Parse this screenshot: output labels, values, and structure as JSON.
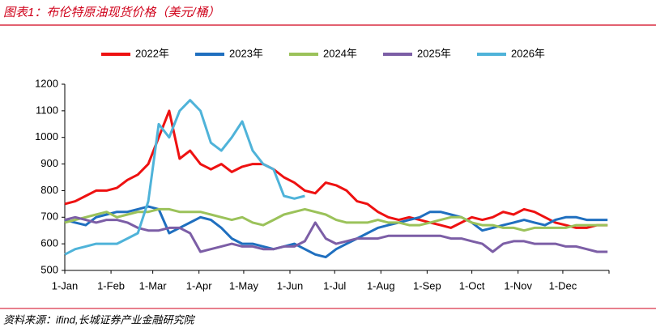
{
  "chart_data": {
    "type": "line",
    "title": "图表1：布伦特原油现货价格（美元/桶）",
    "source": "资料来源：ifind,长城证券产业金融研究院",
    "xlim": [
      0,
      365
    ],
    "xticks": [
      {
        "value": 0,
        "label": "1-Jan"
      },
      {
        "value": 31,
        "label": "1-Feb"
      },
      {
        "value": 59,
        "label": "1-Mar"
      },
      {
        "value": 90,
        "label": "1-Apr"
      },
      {
        "value": 120,
        "label": "1-May"
      },
      {
        "value": 151,
        "label": "1-Jun"
      },
      {
        "value": 181,
        "label": "1-Jul"
      },
      {
        "value": 212,
        "label": "1-Aug"
      },
      {
        "value": 243,
        "label": "1-Sep"
      },
      {
        "value": 273,
        "label": "1-Oct"
      },
      {
        "value": 304,
        "label": "1-Nov"
      },
      {
        "value": 334,
        "label": "1-Dec"
      }
    ],
    "ylim": [
      500,
      1200
    ],
    "yticks": [
      500,
      600,
      700,
      800,
      900,
      1000,
      1100,
      1200
    ],
    "grid": false,
    "legend": "top",
    "series": [
      {
        "name": "2022年",
        "color": "#ee1111",
        "x": [
          0,
          7,
          14,
          21,
          28,
          35,
          42,
          49,
          56,
          63,
          70,
          77,
          84,
          91,
          98,
          105,
          112,
          119,
          126,
          133,
          140,
          147,
          154,
          161,
          168,
          175,
          182,
          189,
          196,
          203,
          210,
          217,
          224,
          231,
          238,
          245,
          252,
          259,
          266,
          273,
          280,
          287,
          294,
          301,
          308,
          315,
          322,
          329,
          336,
          343,
          350,
          357,
          364
        ],
        "values": [
          750,
          760,
          780,
          800,
          800,
          810,
          840,
          860,
          900,
          1000,
          1100,
          920,
          950,
          900,
          880,
          900,
          870,
          890,
          900,
          900,
          880,
          850,
          830,
          800,
          790,
          830,
          820,
          800,
          760,
          750,
          720,
          700,
          690,
          700,
          690,
          680,
          670,
          660,
          680,
          700,
          690,
          700,
          720,
          710,
          730,
          720,
          700,
          680,
          670,
          660,
          660,
          670,
          670
        ]
      },
      {
        "name": "2023年",
        "color": "#1f6fbf",
        "x": [
          0,
          7,
          14,
          21,
          28,
          35,
          42,
          49,
          56,
          63,
          70,
          77,
          84,
          91,
          98,
          105,
          112,
          119,
          126,
          133,
          140,
          147,
          154,
          161,
          168,
          175,
          182,
          189,
          196,
          203,
          210,
          217,
          224,
          231,
          238,
          245,
          252,
          259,
          266,
          273,
          280,
          287,
          294,
          301,
          308,
          315,
          322,
          329,
          336,
          343,
          350,
          357,
          364
        ],
        "values": [
          690,
          680,
          670,
          700,
          710,
          720,
          720,
          730,
          740,
          730,
          640,
          660,
          680,
          700,
          690,
          660,
          620,
          600,
          600,
          590,
          580,
          590,
          600,
          580,
          560,
          550,
          580,
          600,
          620,
          640,
          660,
          670,
          680,
          690,
          700,
          720,
          720,
          710,
          700,
          680,
          650,
          660,
          670,
          680,
          690,
          680,
          670,
          690,
          700,
          700,
          690,
          690,
          690
        ]
      },
      {
        "name": "2024年",
        "color": "#9bc25a",
        "x": [
          0,
          7,
          14,
          21,
          28,
          35,
          42,
          49,
          56,
          63,
          70,
          77,
          84,
          91,
          98,
          105,
          112,
          119,
          126,
          133,
          140,
          147,
          154,
          161,
          168,
          175,
          182,
          189,
          196,
          203,
          210,
          217,
          224,
          231,
          238,
          245,
          252,
          259,
          266,
          273,
          280,
          287,
          294,
          301,
          308,
          315,
          322,
          329,
          336,
          343,
          350,
          357,
          364
        ],
        "values": [
          680,
          690,
          700,
          710,
          720,
          700,
          710,
          720,
          720,
          730,
          730,
          720,
          720,
          720,
          710,
          700,
          690,
          700,
          680,
          670,
          690,
          710,
          720,
          730,
          720,
          710,
          690,
          680,
          680,
          680,
          690,
          680,
          680,
          670,
          670,
          680,
          690,
          700,
          700,
          680,
          670,
          670,
          660,
          660,
          650,
          660,
          660,
          660,
          660,
          670,
          670,
          670,
          670
        ]
      },
      {
        "name": "2025年",
        "color": "#7c5ea6",
        "x": [
          0,
          7,
          14,
          21,
          28,
          35,
          42,
          49,
          56,
          63,
          70,
          77,
          84,
          91,
          98,
          105,
          112,
          119,
          126,
          133,
          140,
          147,
          154,
          161,
          168,
          175,
          182,
          189,
          196,
          203,
          210,
          217,
          224,
          231,
          238,
          245,
          252,
          259,
          266,
          273,
          280,
          287,
          294,
          301,
          308,
          315,
          322,
          329,
          336,
          343,
          350,
          357,
          364
        ],
        "values": [
          690,
          700,
          690,
          680,
          690,
          690,
          680,
          660,
          650,
          650,
          660,
          660,
          640,
          570,
          580,
          590,
          600,
          590,
          590,
          580,
          580,
          590,
          590,
          610,
          680,
          620,
          600,
          610,
          620,
          620,
          620,
          630,
          630,
          630,
          630,
          630,
          630,
          620,
          620,
          610,
          600,
          570,
          600,
          610,
          610,
          600,
          600,
          600,
          590,
          590,
          580,
          570,
          570
        ]
      },
      {
        "name": "2026年",
        "color": "#4fb3d9",
        "x": [
          0,
          7,
          14,
          21,
          28,
          35,
          42,
          49,
          56,
          63,
          70,
          77,
          84,
          91,
          98,
          105,
          112,
          119,
          126,
          133,
          140,
          147,
          154,
          161
        ],
        "values": [
          560,
          580,
          590,
          600,
          600,
          600,
          620,
          640,
          760,
          1050,
          1000,
          1100,
          1140,
          1100,
          980,
          950,
          1000,
          1060,
          950,
          900,
          880,
          780,
          770,
          780
        ]
      }
    ]
  }
}
